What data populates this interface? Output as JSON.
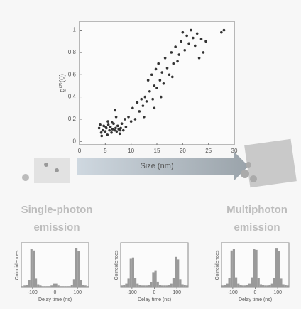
{
  "chart_data": [
    {
      "type": "scatter",
      "xlabel": "Size (nm)",
      "ylabel": "g⁽²⁾(0)",
      "color": "#333333",
      "x": [
        3.8,
        4.0,
        4.2,
        4.5,
        4.7,
        5.0,
        5.2,
        5.4,
        5.6,
        5.8,
        6.0,
        6.2,
        6.4,
        6.6,
        6.8,
        7.0,
        7.2,
        7.4,
        7.6,
        7.8,
        8.0,
        8.2,
        8.5,
        8.8,
        9.0,
        4.3,
        5.5,
        6.3,
        7.1,
        7.9,
        6.9,
        5.1,
        9.5,
        10.0,
        10.3,
        10.8,
        11.2,
        11.6,
        12.0,
        12.3,
        12.7,
        13.0,
        13.3,
        13.6,
        14.0,
        14.2,
        14.5,
        14.8,
        15.0,
        15.3,
        15.6,
        16.0,
        16.3,
        16.6,
        17.0,
        17.4,
        17.8,
        18.2,
        18.6,
        19.0,
        19.3,
        19.7,
        20.0,
        20.4,
        20.8,
        21.2,
        21.6,
        22.0,
        22.4,
        22.8,
        23.2,
        23.6,
        24.0,
        24.5,
        27.5,
        28.0,
        14.5,
        15.8,
        18.0,
        12.5
      ],
      "values": [
        0.12,
        0.15,
        0.08,
        0.1,
        0.14,
        0.09,
        0.12,
        0.06,
        0.15,
        0.1,
        0.13,
        0.08,
        0.11,
        0.16,
        0.1,
        0.12,
        0.09,
        0.14,
        0.11,
        0.07,
        0.12,
        0.16,
        0.1,
        0.2,
        0.13,
        0.05,
        0.18,
        0.17,
        0.22,
        0.1,
        0.28,
        0.13,
        0.22,
        0.18,
        0.3,
        0.2,
        0.35,
        0.27,
        0.38,
        0.32,
        0.4,
        0.36,
        0.55,
        0.45,
        0.6,
        0.38,
        0.5,
        0.65,
        0.48,
        0.7,
        0.55,
        0.62,
        0.52,
        0.75,
        0.66,
        0.6,
        0.8,
        0.7,
        0.85,
        0.72,
        0.78,
        0.9,
        0.98,
        0.82,
        0.95,
        0.88,
        1.0,
        0.93,
        0.86,
        0.97,
        0.75,
        0.92,
        0.8,
        0.9,
        0.98,
        1.0,
        0.3,
        0.4,
        0.58,
        0.22
      ],
      "xlim": [
        0,
        30
      ],
      "xticks": [
        0,
        5,
        10,
        15,
        20,
        25,
        30
      ],
      "ylim": [
        -0.03,
        1.08
      ],
      "yticks": [
        0,
        0.2,
        0.4,
        0.6,
        0.8,
        1
      ]
    },
    {
      "type": "histogram",
      "xlabel": "Delay time (ns)",
      "ylabel": "Coincidences",
      "color": "#9a9a9a",
      "bins": [
        -150,
        -140,
        -130,
        -120,
        -110,
        -100,
        -90,
        -80,
        -70,
        -60,
        -50,
        -40,
        -30,
        -20,
        -10,
        0,
        10,
        20,
        30,
        40,
        50,
        60,
        70,
        80,
        90,
        100,
        110,
        120,
        130,
        140,
        150
      ],
      "values": [
        2,
        3,
        4,
        12,
        60,
        58,
        14,
        5,
        3,
        2,
        2,
        2,
        2,
        3,
        6,
        6,
        3,
        2,
        2,
        2,
        2,
        2,
        4,
        13,
        62,
        57,
        12,
        4,
        3,
        2
      ],
      "xlim": [
        -150,
        150
      ],
      "xticks": [
        -100,
        0,
        100
      ],
      "ylim": [
        0,
        70
      ]
    },
    {
      "type": "histogram",
      "xlabel": "Delay time (ns)",
      "ylabel": "Coincidences",
      "color": "#9a9a9a",
      "bins": [
        -150,
        -140,
        -130,
        -120,
        -110,
        -100,
        -90,
        -80,
        -70,
        -60,
        -50,
        -40,
        -30,
        -20,
        -10,
        0,
        10,
        20,
        30,
        40,
        50,
        60,
        70,
        80,
        90,
        100,
        110,
        120,
        130,
        140,
        150
      ],
      "values": [
        3,
        4,
        6,
        14,
        45,
        47,
        15,
        6,
        4,
        3,
        3,
        3,
        4,
        8,
        24,
        26,
        9,
        4,
        3,
        3,
        3,
        4,
        6,
        15,
        48,
        44,
        13,
        5,
        4,
        3
      ],
      "xlim": [
        -150,
        150
      ],
      "xticks": [
        -100,
        0,
        100
      ],
      "ylim": [
        0,
        70
      ]
    },
    {
      "type": "histogram",
      "xlabel": "Delay time (ns)",
      "ylabel": "Coincidences",
      "color": "#9a9a9a",
      "bins": [
        -150,
        -140,
        -130,
        -120,
        -110,
        -100,
        -90,
        -80,
        -70,
        -60,
        -50,
        -40,
        -30,
        -20,
        -10,
        0,
        10,
        20,
        30,
        40,
        50,
        60,
        70,
        80,
        90,
        100,
        110,
        120,
        130,
        140,
        150
      ],
      "values": [
        3,
        4,
        6,
        15,
        58,
        60,
        16,
        6,
        4,
        3,
        3,
        4,
        6,
        16,
        60,
        59,
        15,
        5,
        4,
        3,
        3,
        4,
        6,
        15,
        61,
        57,
        14,
        5,
        4,
        3
      ],
      "xlim": [
        -150,
        150
      ],
      "xticks": [
        -100,
        0,
        100
      ],
      "ylim": [
        0,
        70
      ]
    }
  ],
  "labels": {
    "single": [
      "Single-photon",
      "emission"
    ],
    "multi": [
      "Multiphoton",
      "emission"
    ]
  }
}
